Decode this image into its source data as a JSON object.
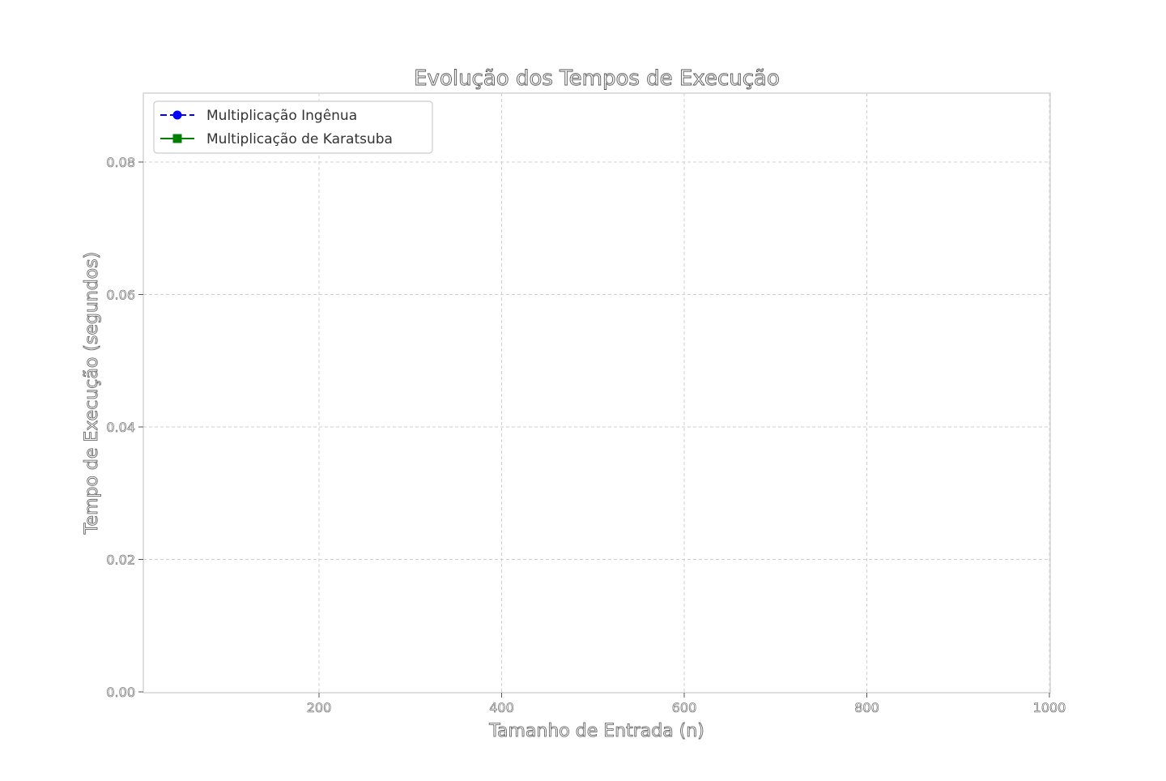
{
  "chart_data": {
    "type": "line",
    "title": "Evolução dos Tempos de Execução",
    "xlabel": "Tamanho de Entrada (n)",
    "ylabel": "Tempo de Execução (segundos)",
    "xlim": [
      0,
      1000
    ],
    "ylim": [
      0,
      0.09
    ],
    "xticks": [
      200,
      400,
      600,
      800,
      1000
    ],
    "yticks": [
      0.0,
      0.02,
      0.04,
      0.06,
      0.08
    ],
    "xtick_labels": [
      "200",
      "400",
      "600",
      "800",
      "1000"
    ],
    "ytick_labels": [
      "0.00",
      "0.02",
      "0.04",
      "0.06",
      "0.08"
    ],
    "grid": true,
    "legend_position": "upper-left",
    "series": [
      {
        "name": "Multiplicação Ingênua",
        "color": "#0000ff",
        "line_style": "dashed",
        "marker": "circle",
        "x": [],
        "y": []
      },
      {
        "name": "Multiplicação de Karatsuba",
        "color": "#008000",
        "line_style": "solid",
        "marker": "square",
        "x": [],
        "y": []
      }
    ]
  }
}
